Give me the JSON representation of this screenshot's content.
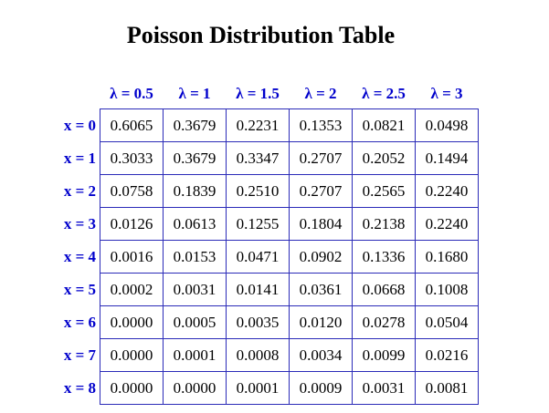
{
  "title": "Poisson Distribution Table",
  "colors": {
    "header": "#0000cc",
    "border": "#2b2bb8",
    "text": "#000000"
  },
  "table": {
    "lambdas": [
      "λ = 0.5",
      "λ = 1",
      "λ = 1.5",
      "λ = 2",
      "λ = 2.5",
      "λ = 3"
    ],
    "rows": [
      {
        "label": "x = 0",
        "values": [
          "0.6065",
          "0.3679",
          "0.2231",
          "0.1353",
          "0.0821",
          "0.0498"
        ]
      },
      {
        "label": "x = 1",
        "values": [
          "0.3033",
          "0.3679",
          "0.3347",
          "0.2707",
          "0.2052",
          "0.1494"
        ]
      },
      {
        "label": "x = 2",
        "values": [
          "0.0758",
          "0.1839",
          "0.2510",
          "0.2707",
          "0.2565",
          "0.2240"
        ]
      },
      {
        "label": "x = 3",
        "values": [
          "0.0126",
          "0.0613",
          "0.1255",
          "0.1804",
          "0.2138",
          "0.2240"
        ]
      },
      {
        "label": "x = 4",
        "values": [
          "0.0016",
          "0.0153",
          "0.0471",
          "0.0902",
          "0.1336",
          "0.1680"
        ]
      },
      {
        "label": "x = 5",
        "values": [
          "0.0002",
          "0.0031",
          "0.0141",
          "0.0361",
          "0.0668",
          "0.1008"
        ]
      },
      {
        "label": "x = 6",
        "values": [
          "0.0000",
          "0.0005",
          "0.0035",
          "0.0120",
          "0.0278",
          "0.0504"
        ]
      },
      {
        "label": "x = 7",
        "values": [
          "0.0000",
          "0.0001",
          "0.0008",
          "0.0034",
          "0.0099",
          "0.0216"
        ]
      },
      {
        "label": "x = 8",
        "values": [
          "0.0000",
          "0.0000",
          "0.0001",
          "0.0009",
          "0.0031",
          "0.0081"
        ]
      }
    ]
  }
}
